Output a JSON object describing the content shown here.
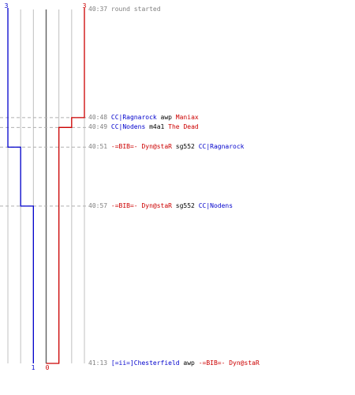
{
  "chart_data": {
    "type": "line",
    "chart_kind": "step",
    "x_axis": "time (vertical, top to bottom)",
    "team_blue": {
      "color": "#0000cc",
      "start_label": "3",
      "end_label": "1",
      "steps": [
        {
          "time": "40:37",
          "value": 3
        },
        {
          "time": "40:51",
          "value": 2
        },
        {
          "time": "40:57",
          "value": 1
        },
        {
          "time": "41:13",
          "value": 1
        }
      ]
    },
    "team_red": {
      "color": "#cc0000",
      "start_label": "3",
      "end_label": "0",
      "steps": [
        {
          "time": "40:37",
          "value": 3
        },
        {
          "time": "40:48",
          "value": 2
        },
        {
          "time": "40:49",
          "value": 1
        },
        {
          "time": "41:13",
          "value": 0
        }
      ]
    },
    "grid": true
  },
  "log": [
    {
      "time": "40:37",
      "parts": [
        {
          "text": "round started",
          "color": "gray"
        }
      ]
    },
    {
      "time": "40:48",
      "parts": [
        {
          "text": "CC|Ragnarock",
          "color": "blue"
        },
        {
          "text": " awp ",
          "color": "black"
        },
        {
          "text": "Maniax",
          "color": "red"
        }
      ]
    },
    {
      "time": "40:49",
      "parts": [
        {
          "text": "CC|Nodens",
          "color": "blue"
        },
        {
          "text": " m4a1 ",
          "color": "black"
        },
        {
          "text": "The Dead",
          "color": "red"
        }
      ]
    },
    {
      "time": "40:51",
      "parts": [
        {
          "text": "-=BIB=- Dyn@staR",
          "color": "red"
        },
        {
          "text": " sg552 ",
          "color": "black"
        },
        {
          "text": "CC|Ragnarock",
          "color": "blue"
        }
      ]
    },
    {
      "time": "40:57",
      "parts": [
        {
          "text": "-=BIB=- Dyn@staR",
          "color": "red"
        },
        {
          "text": " sg552 ",
          "color": "black"
        },
        {
          "text": "CC|Nodens",
          "color": "blue"
        }
      ]
    },
    {
      "time": "41:13",
      "parts": [
        {
          "text": "[=ii=]Chesterfield",
          "color": "blue"
        },
        {
          "text": " awp ",
          "color": "black"
        },
        {
          "text": "-=BIB=- Dyn@staR",
          "color": "red"
        }
      ]
    }
  ]
}
